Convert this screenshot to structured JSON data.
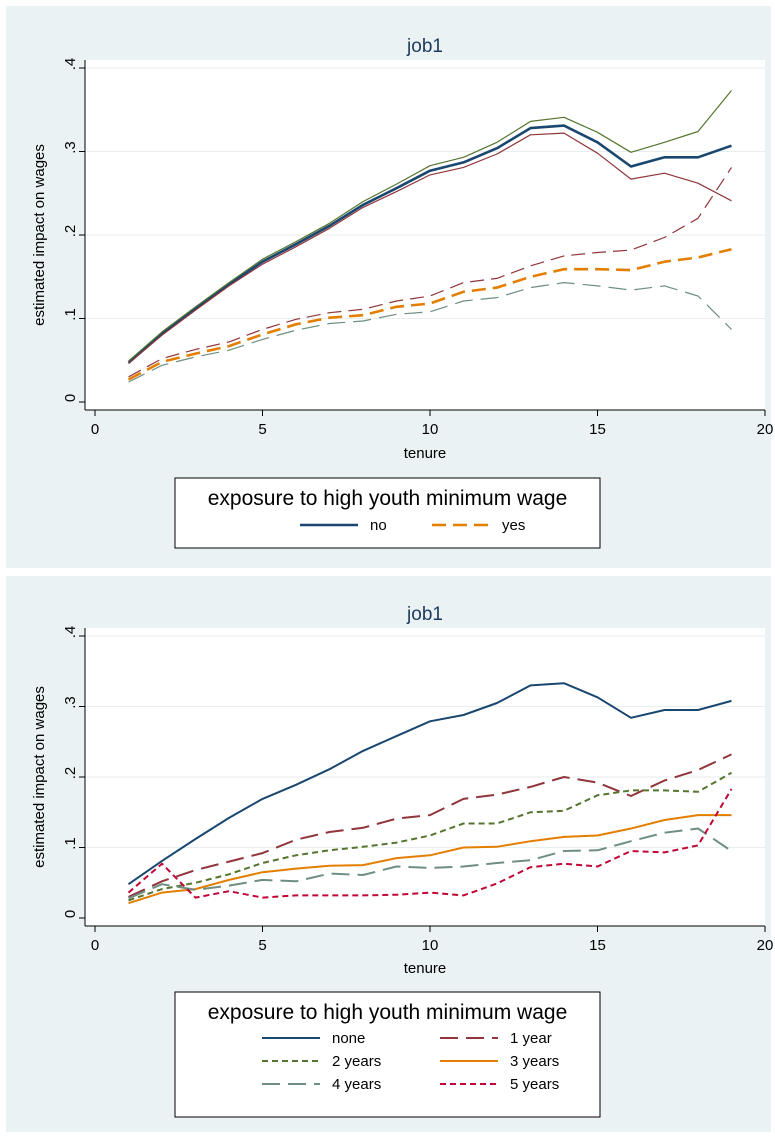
{
  "chart_data": [
    {
      "type": "line",
      "title": "job1",
      "xlabel": "tenure",
      "ylabel": "estimated impact on wages",
      "xlim": [
        0,
        20
      ],
      "ylim": [
        0,
        0.4
      ],
      "x_ticks": [
        0,
        5,
        10,
        15,
        20
      ],
      "x_tick_labels": [
        "0",
        "5",
        "10",
        "15",
        "20"
      ],
      "y_ticks": [
        0,
        0.1,
        0.2,
        0.3,
        0.4
      ],
      "y_tick_labels": [
        "0",
        ".1",
        ".2",
        ".3",
        ".4"
      ],
      "grid": "horizontal",
      "legend": {
        "title": "exposure to high youth minimum wage",
        "placement": "bottom",
        "columns": 2,
        "entries": [
          "no",
          "yes"
        ]
      },
      "x": [
        1,
        2,
        3,
        4,
        5,
        6,
        7,
        8,
        9,
        10,
        11,
        12,
        13,
        14,
        15,
        16,
        17,
        18,
        19
      ],
      "series": [
        {
          "name": "no",
          "color": "#1a476f",
          "style": "solid",
          "weight": "thick",
          "values": [
            0.047,
            0.082,
            0.112,
            0.141,
            0.168,
            0.189,
            0.211,
            0.236,
            0.256,
            0.277,
            0.287,
            0.304,
            0.328,
            0.331,
            0.311,
            0.282,
            0.293,
            0.293,
            0.307
          ]
        },
        {
          "name": "no upper bound",
          "color": "#55752f",
          "style": "solid",
          "weight": "thin",
          "in_legend": false,
          "values": [
            0.049,
            0.084,
            0.114,
            0.143,
            0.171,
            0.192,
            0.214,
            0.24,
            0.261,
            0.283,
            0.293,
            0.311,
            0.336,
            0.341,
            0.323,
            0.299,
            0.311,
            0.324,
            0.373
          ]
        },
        {
          "name": "no lower bound",
          "color": "#90353b",
          "style": "solid",
          "weight": "thin",
          "in_legend": false,
          "values": [
            0.046,
            0.08,
            0.11,
            0.139,
            0.165,
            0.186,
            0.208,
            0.233,
            0.252,
            0.272,
            0.281,
            0.297,
            0.32,
            0.322,
            0.298,
            0.267,
            0.274,
            0.262,
            0.241
          ]
        },
        {
          "name": "yes",
          "color": "#e37e00",
          "style": "dash",
          "weight": "thick",
          "values": [
            0.027,
            0.048,
            0.058,
            0.067,
            0.081,
            0.093,
            0.101,
            0.104,
            0.114,
            0.118,
            0.132,
            0.137,
            0.15,
            0.159,
            0.159,
            0.158,
            0.168,
            0.173,
            0.183
          ]
        },
        {
          "name": "yes upper bound",
          "color": "#90353b",
          "style": "dash",
          "weight": "thin",
          "in_legend": false,
          "values": [
            0.03,
            0.052,
            0.063,
            0.072,
            0.087,
            0.099,
            0.107,
            0.111,
            0.121,
            0.127,
            0.143,
            0.148,
            0.163,
            0.175,
            0.179,
            0.182,
            0.197,
            0.22,
            0.281
          ]
        },
        {
          "name": "yes lower bound",
          "color": "#6e8e84",
          "style": "longdash",
          "weight": "thin",
          "in_legend": false,
          "values": [
            0.024,
            0.044,
            0.054,
            0.062,
            0.075,
            0.086,
            0.094,
            0.097,
            0.105,
            0.108,
            0.121,
            0.125,
            0.137,
            0.143,
            0.139,
            0.134,
            0.139,
            0.127,
            0.087
          ]
        }
      ]
    },
    {
      "type": "line",
      "title": "job1",
      "xlabel": "tenure",
      "ylabel": "estimated impact on wages",
      "xlim": [
        0,
        20
      ],
      "ylim": [
        0,
        0.4
      ],
      "x_ticks": [
        0,
        5,
        10,
        15,
        20
      ],
      "x_tick_labels": [
        "0",
        "5",
        "10",
        "15",
        "20"
      ],
      "y_ticks": [
        0,
        0.1,
        0.2,
        0.3,
        0.4
      ],
      "y_tick_labels": [
        "0",
        ".1",
        ".2",
        ".3",
        ".4"
      ],
      "grid": "horizontal",
      "legend": {
        "title": "exposure to high youth minimum wage",
        "placement": "bottom",
        "columns": 2,
        "entries": [
          "none",
          "1 year",
          "2 years",
          "3 years",
          "4 years",
          "5 years"
        ]
      },
      "x": [
        1,
        2,
        3,
        4,
        5,
        6,
        7,
        8,
        9,
        10,
        11,
        12,
        13,
        14,
        15,
        16,
        17,
        18,
        19
      ],
      "series": [
        {
          "name": "none",
          "color": "#1a476f",
          "style": "solid",
          "weight": "normal",
          "values": [
            0.048,
            0.081,
            0.112,
            0.142,
            0.169,
            0.189,
            0.211,
            0.237,
            0.258,
            0.279,
            0.288,
            0.305,
            0.33,
            0.333,
            0.313,
            0.284,
            0.295,
            0.295,
            0.308
          ]
        },
        {
          "name": "1 year",
          "color": "#90353b",
          "style": "longdash",
          "weight": "normal",
          "values": [
            0.03,
            0.052,
            0.068,
            0.08,
            0.092,
            0.111,
            0.122,
            0.128,
            0.141,
            0.146,
            0.169,
            0.175,
            0.186,
            0.2,
            0.192,
            0.173,
            0.195,
            0.21,
            0.232
          ]
        },
        {
          "name": "2 years",
          "color": "#55752f",
          "style": "shortdash",
          "weight": "normal",
          "values": [
            0.025,
            0.041,
            0.05,
            0.062,
            0.078,
            0.089,
            0.096,
            0.101,
            0.107,
            0.117,
            0.134,
            0.134,
            0.15,
            0.152,
            0.174,
            0.181,
            0.181,
            0.179,
            0.206
          ]
        },
        {
          "name": "3 years",
          "color": "#e37e00",
          "style": "solid",
          "weight": "normal",
          "values": [
            0.021,
            0.036,
            0.041,
            0.054,
            0.065,
            0.07,
            0.074,
            0.075,
            0.085,
            0.089,
            0.1,
            0.101,
            0.109,
            0.115,
            0.117,
            0.127,
            0.139,
            0.146,
            0.146
          ]
        },
        {
          "name": "4 years",
          "color": "#6e8e84",
          "style": "longdash",
          "weight": "normal",
          "values": [
            0.028,
            0.048,
            0.04,
            0.046,
            0.054,
            0.052,
            0.063,
            0.061,
            0.073,
            0.071,
            0.073,
            0.078,
            0.082,
            0.095,
            0.096,
            0.109,
            0.121,
            0.127,
            0.095
          ]
        },
        {
          "name": "5 years",
          "color": "#c10534",
          "style": "shortdash",
          "weight": "normal",
          "values": [
            0.036,
            0.077,
            0.029,
            0.038,
            0.029,
            0.032,
            0.032,
            0.032,
            0.033,
            0.036,
            0.032,
            0.049,
            0.072,
            0.077,
            0.073,
            0.095,
            0.093,
            0.103,
            0.183
          ]
        }
      ]
    }
  ]
}
